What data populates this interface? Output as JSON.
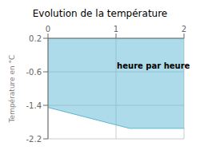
{
  "chart_data": {
    "type": "area",
    "title": "Evolution de la température",
    "ylabel": "Température en °C",
    "x": [
      0,
      1.2,
      2
    ],
    "series": [
      {
        "name": "Température",
        "color": "#5bb8d4",
        "values": [
          -1.45,
          -1.95,
          -1.95
        ]
      }
    ],
    "xlim": [
      0,
      2
    ],
    "xticks": [
      0,
      1,
      2
    ],
    "ylim": [
      -2.2,
      0.2
    ],
    "yticks": [
      0.2,
      -0.6,
      -1.4,
      -2.2
    ],
    "grid": true,
    "annotations": [
      {
        "text": "heure par heure",
        "x": 1.55,
        "y": -0.45
      }
    ]
  }
}
